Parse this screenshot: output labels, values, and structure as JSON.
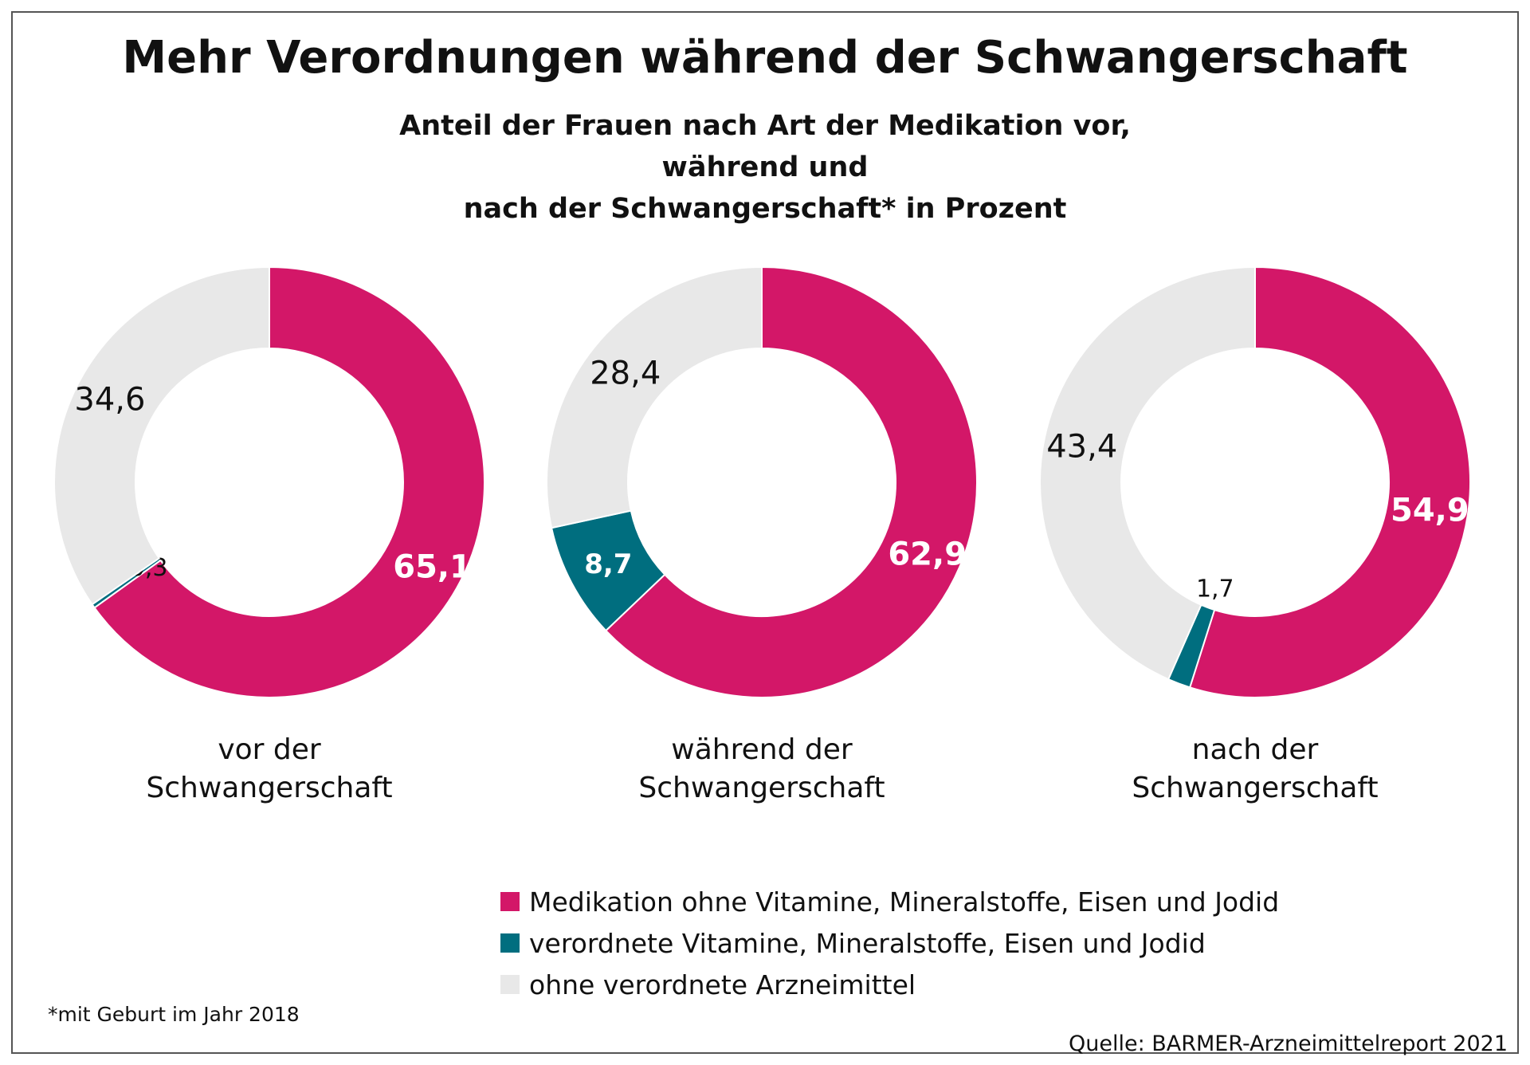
{
  "title": "Mehr Verordnungen während der Schwangerschaft",
  "subtitle_lines": [
    "Anteil der Frauen nach Art der Medikation vor, während und",
    "nach der Schwangerschaft* in Prozent"
  ],
  "footnote": "*mit Geburt im Jahr 2018",
  "source": "Quelle: BARMER-Arzneimittelreport 2021",
  "colors": {
    "medikation": "#d31768",
    "vitamine": "#006e7f",
    "ohne": "#e8e8e8"
  },
  "legend": [
    {
      "label": "Medikation ohne Vitamine, Mineralstoffe, Eisen und Jodid",
      "color": "#d31768"
    },
    {
      "label": "verordnete Vitamine, Mineralstoffe, Eisen und Jodid",
      "color": "#006e7f"
    },
    {
      "label": "ohne verordnete Arzneimittel",
      "color": "#e8e8e8"
    }
  ],
  "chart_data": [
    {
      "type": "pie",
      "donut": true,
      "title_lines": [
        "vor der",
        "Schwangerschaft"
      ],
      "series": [
        {
          "name": "Medikation ohne Vitamine, Mineralstoffe, Eisen und Jodid",
          "value": 65.1,
          "label": "65,1"
        },
        {
          "name": "verordnete Vitamine, Mineralstoffe, Eisen und Jodid",
          "value": 0.3,
          "label": "0,3"
        },
        {
          "name": "ohne verordnete Arzneimittel",
          "value": 34.6,
          "label": "34,6"
        }
      ]
    },
    {
      "type": "pie",
      "donut": true,
      "title_lines": [
        "während der",
        "Schwangerschaft"
      ],
      "series": [
        {
          "name": "Medikation ohne Vitamine, Mineralstoffe, Eisen und Jodid",
          "value": 62.9,
          "label": "62,9"
        },
        {
          "name": "verordnete Vitamine, Mineralstoffe, Eisen und Jodid",
          "value": 8.7,
          "label": "8,7"
        },
        {
          "name": "ohne verordnete Arzneimittel",
          "value": 28.4,
          "label": "28,4"
        }
      ]
    },
    {
      "type": "pie",
      "donut": true,
      "title_lines": [
        "nach der",
        "Schwangerschaft"
      ],
      "series": [
        {
          "name": "Medikation ohne Vitamine, Mineralstoffe, Eisen und Jodid",
          "value": 54.9,
          "label": "54,9"
        },
        {
          "name": "verordnete Vitamine, Mineralstoffe, Eisen und Jodid",
          "value": 1.7,
          "label": "1,7"
        },
        {
          "name": "ohne verordnete Arzneimittel",
          "value": 43.4,
          "label": "43,4"
        }
      ]
    }
  ]
}
